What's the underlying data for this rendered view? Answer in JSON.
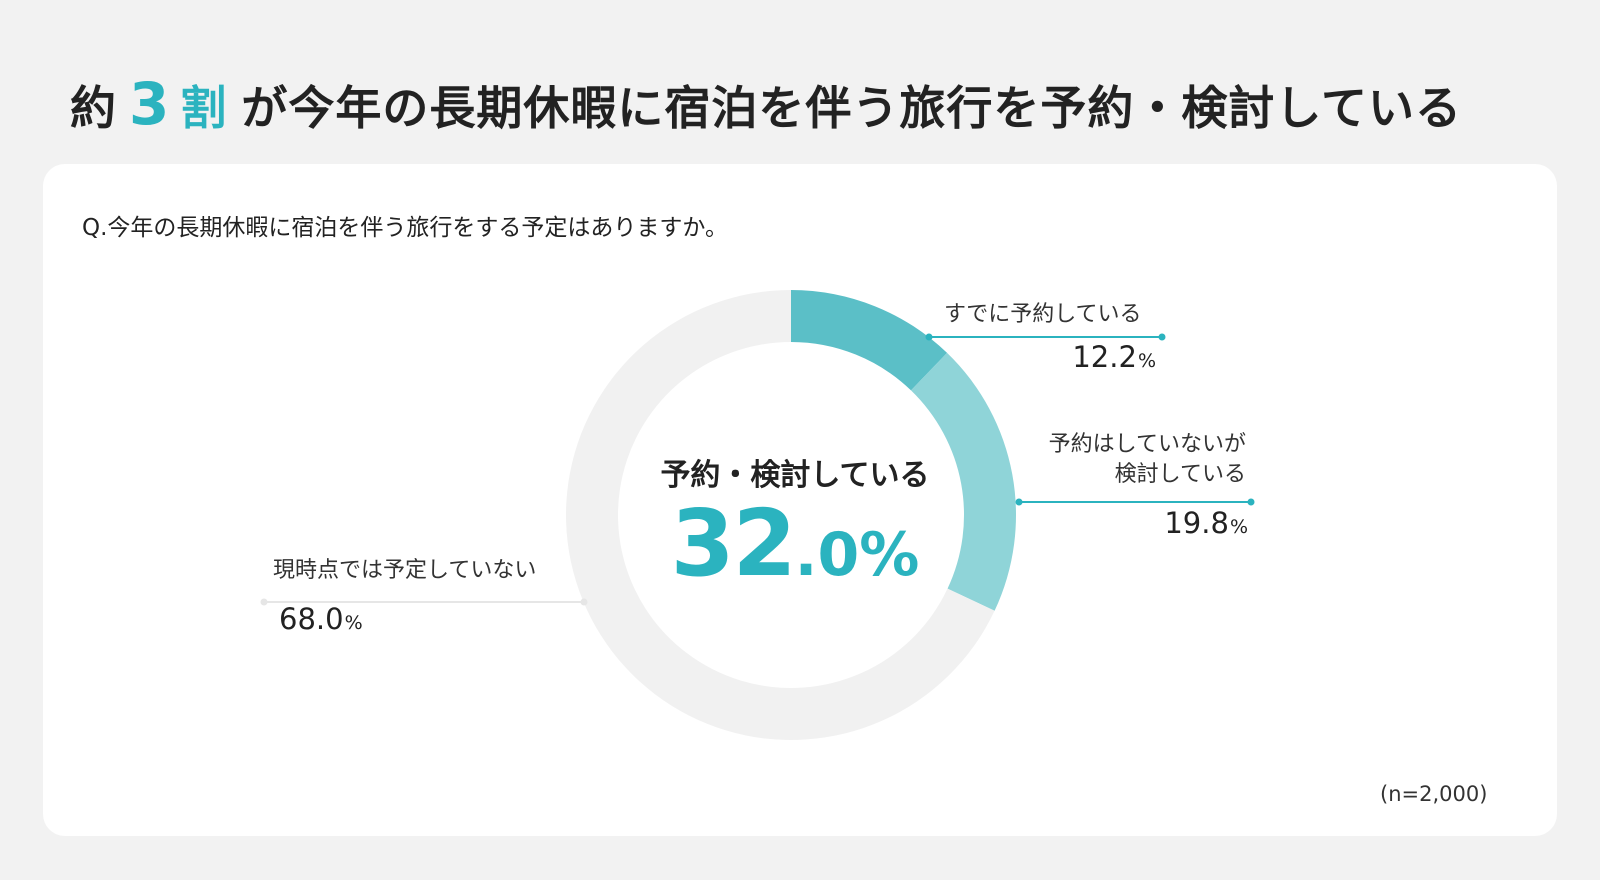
{
  "headline": {
    "prefix": "約",
    "number": "3",
    "unit": "割",
    "rest": "が今年の長期休暇に宿泊を伴う旅行を予約・検討している"
  },
  "question": "Q.今年の長期休暇に宿泊を伴う旅行をする予定はありますか。",
  "center": {
    "label": "予約・検討している",
    "value_int": "32",
    "value_dec": ".0%"
  },
  "sample_note": "(n=2,000)",
  "chart_data": {
    "type": "pie",
    "donut": true,
    "categories": [
      "すでに予約している",
      "予約はしていないが検討している",
      "現時点では予定していない"
    ],
    "values": [
      12.2,
      19.8,
      68.0
    ],
    "unit": "%",
    "colors": [
      "#5bbfc7",
      "#8fd4d8",
      "#f1f1f1"
    ],
    "accent": "#2bb3bf"
  },
  "slices": [
    {
      "label_lines": [
        "すでに予約している"
      ],
      "value": "12.2",
      "unit": "%"
    },
    {
      "label_lines": [
        "予約はしていないが",
        "検討している"
      ],
      "value": "19.8",
      "unit": "%"
    },
    {
      "label_lines": [
        "現時点では予定していない"
      ],
      "value": "68.0",
      "unit": "%"
    }
  ]
}
